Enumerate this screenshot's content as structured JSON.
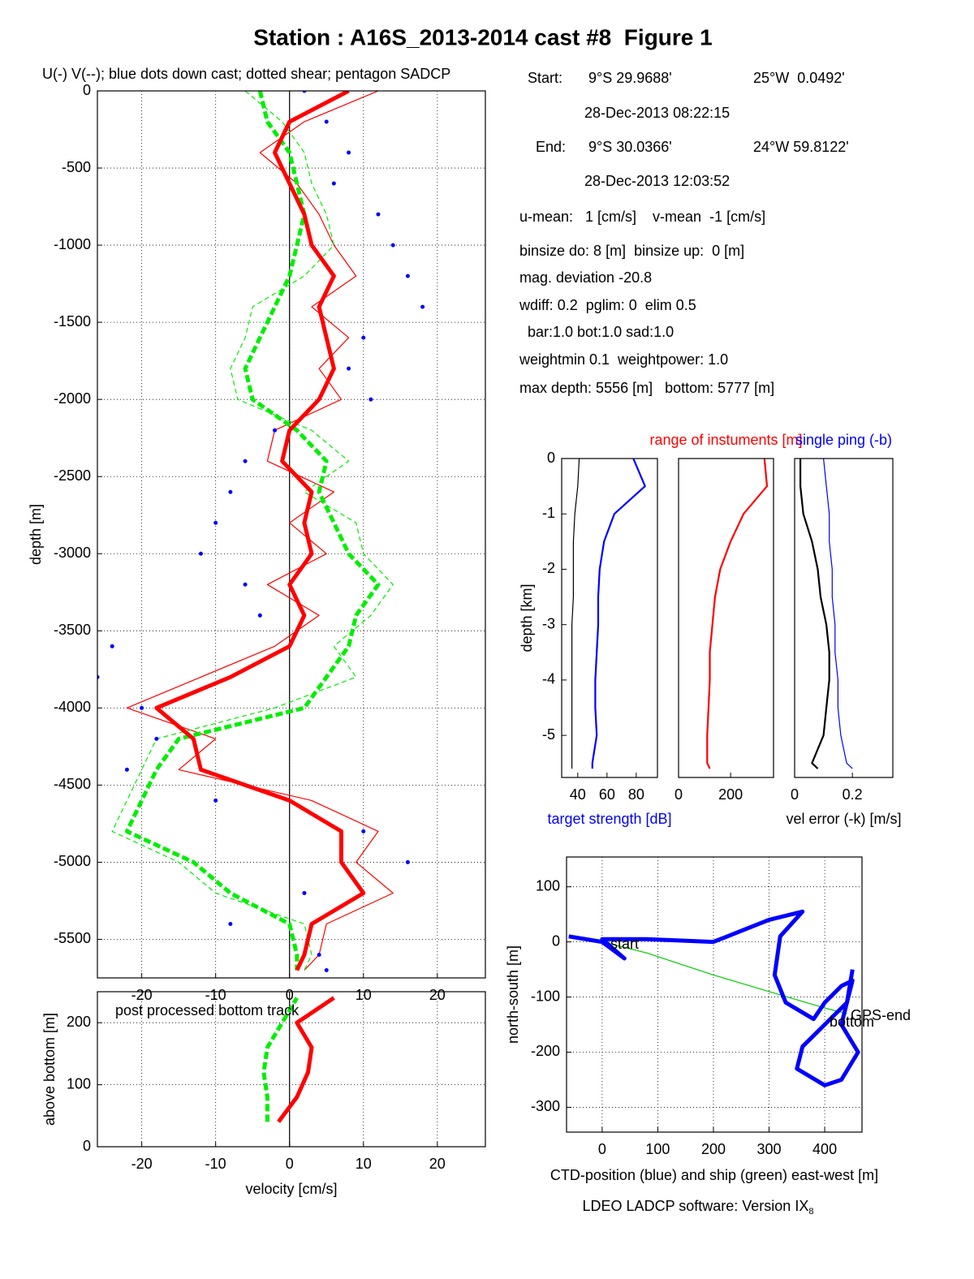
{
  "title": "Station : A16S_2013-2014 cast #8  Figure 1",
  "info": [
    [
      "Start:",
      "9°S 29.9688'",
      "25°W  0.0492'"
    ],
    [
      "28-Dec-2013 08:22:15"
    ],
    [
      "End:",
      "9°S 30.0366'",
      "24°W 59.8122'"
    ],
    [
      "28-Dec-2013 12:03:52"
    ],
    [
      "u-mean:   1 [cm/s]    v-mean  -1 [cm/s]"
    ],
    [
      "binsize do: 8 [m]  binsize up:  0 [m]"
    ],
    [
      "mag. deviation -20.8"
    ],
    [
      "wdiff: 0.2  pglim: 0  elim 0.5"
    ],
    [
      "  bar:1.0 bot:1.0 sad:1.0"
    ],
    [
      "weightmin 0.1  weightpower: 1.0"
    ],
    [
      "max depth: 5556 [m]   bottom: 5777 [m]"
    ]
  ],
  "footer": {
    "text": "LDEO LADCP software: Version IX",
    "subscript": "8"
  },
  "chart_data": [
    {
      "type": "line",
      "title": "U(-) V(--); blue dots down cast; dotted shear; pentagon SADCP",
      "xlabel": "velocity [cm/s]",
      "ylabel": "depth [m]",
      "grid": true,
      "zero_line": true,
      "xlim": [
        -26,
        26.5
      ],
      "ylim": [
        -5750,
        0
      ],
      "xticks": [
        -20,
        -10,
        0,
        10,
        20
      ],
      "yticks": [
        0,
        -500,
        -1000,
        -1500,
        -2000,
        -2500,
        -3000,
        -3500,
        -4000,
        -4500,
        -5000,
        -5500
      ],
      "y": [
        0,
        -200,
        -400,
        -600,
        -800,
        -1000,
        -1200,
        -1400,
        -1600,
        -1800,
        -2000,
        -2200,
        -2400,
        -2600,
        -2800,
        -3000,
        -3200,
        -3400,
        -3600,
        -3800,
        -4000,
        -4200,
        -4400,
        -4600,
        -4800,
        -5000,
        -5200,
        -5400,
        -5600,
        -5700
      ],
      "series": [
        {
          "color": "#ff0000",
          "style": "thin",
          "values": [
            12,
            2,
            -4,
            1,
            4,
            6,
            9,
            3,
            8,
            4,
            7,
            -2,
            -3,
            6,
            0,
            5,
            -3,
            4,
            -2,
            -12,
            -22,
            -10,
            -15,
            3,
            12,
            9,
            14,
            5,
            4,
            2
          ]
        },
        {
          "color": "#00ee00",
          "style": "thin-dashed",
          "values": [
            -6,
            -1,
            2,
            3,
            5,
            6,
            2,
            -5,
            -6,
            -8,
            -7,
            3,
            8,
            2,
            9,
            10,
            14,
            11,
            6,
            9,
            -2,
            -18,
            -20,
            -22,
            -24,
            -15,
            -10,
            2,
            3,
            2
          ]
        },
        {
          "color": "#0000ff",
          "style": "dots",
          "values": [
            2,
            5,
            8,
            6,
            12,
            14,
            16,
            18,
            10,
            8,
            11,
            -2,
            -6,
            -8,
            -10,
            -12,
            -6,
            -4,
            -24,
            -26,
            -20,
            -18,
            -22,
            -10,
            10,
            16,
            2,
            -8,
            4,
            5
          ]
        },
        {
          "color": "#00ee00",
          "style": "thick-dashed",
          "values": [
            -4,
            -3,
            0,
            1,
            2,
            1,
            0,
            -2,
            -4,
            -6,
            -5,
            1,
            5,
            4,
            6,
            8,
            12,
            9,
            8,
            5,
            2,
            -15,
            -18,
            -20,
            -22,
            -13,
            -8,
            0,
            1,
            1
          ]
        },
        {
          "color": "#ff0000",
          "style": "thick",
          "values": [
            8,
            0,
            -2,
            0,
            2,
            3,
            6,
            4,
            5,
            6,
            4,
            0,
            -1,
            3,
            2,
            3,
            0,
            2,
            0,
            -8,
            -18,
            -13,
            -12,
            0,
            7,
            7,
            10,
            3,
            2,
            1
          ]
        }
      ]
    },
    {
      "type": "line",
      "annotation": "post processed bottom track",
      "ylabel": "above bottom [m]",
      "grid": true,
      "zero_line": true,
      "xlim": [
        -26,
        26.5
      ],
      "ylim": [
        0,
        250
      ],
      "xticks": [
        -20,
        -10,
        0,
        10,
        20
      ],
      "yticks": [
        0,
        100,
        200
      ],
      "y": [
        40,
        80,
        120,
        160,
        200,
        240
      ],
      "series": [
        {
          "color": "#00ee00",
          "style": "thick-dashed",
          "values": [
            -3,
            -3,
            -3.5,
            -3,
            -1,
            1
          ]
        },
        {
          "color": "#ff0000",
          "style": "thick",
          "values": [
            -1.5,
            1,
            2.5,
            3,
            1,
            6
          ]
        }
      ]
    },
    {
      "type": "line",
      "xlabel": "target strength [dB]",
      "xlabel_color": "#0000ff",
      "ylabel": "depth [km]",
      "grid": false,
      "xlim": [
        29,
        94.5
      ],
      "ylim": [
        -5.76,
        0
      ],
      "xticks": [
        40,
        60,
        80
      ],
      "yticks": [
        0,
        -1,
        -2,
        -3,
        -4,
        -5
      ],
      "y": [
        0,
        -0.5,
        -1,
        -1.5,
        -2,
        -2.5,
        -3,
        -3.5,
        -4,
        -4.5,
        -5,
        -5.5,
        -5.6
      ],
      "series": [
        {
          "color": "#000000",
          "style": "thin",
          "values": [
            41,
            40,
            38,
            37,
            37,
            37,
            36,
            36,
            36,
            36,
            36,
            36,
            36
          ]
        },
        {
          "color": "#0000ff",
          "style": "mid",
          "values": [
            78,
            86,
            65,
            58,
            55,
            54,
            54,
            53,
            52,
            52,
            53,
            50,
            50
          ]
        }
      ]
    },
    {
      "type": "line",
      "title": "range of instuments [m]",
      "title_color": "#ff0000",
      "grid": false,
      "xlim": [
        0,
        365
      ],
      "ylim": [
        -5.76,
        0
      ],
      "xticks": [
        0,
        200
      ],
      "y": [
        0,
        -0.5,
        -1,
        -1.5,
        -2,
        -2.5,
        -3,
        -3.5,
        -4,
        -4.5,
        -5,
        -5.5,
        -5.6
      ],
      "series": [
        {
          "color": "#ff0000",
          "style": "mid",
          "values": [
            330,
            340,
            250,
            200,
            160,
            140,
            130,
            120,
            120,
            115,
            110,
            110,
            120
          ]
        }
      ]
    },
    {
      "type": "line",
      "title": "single ping (-b)",
      "title_color": "#0000ff",
      "xlabel": "vel error (-k) [m/s]",
      "grid": false,
      "xlim": [
        0,
        0.34
      ],
      "ylim": [
        -5.76,
        0
      ],
      "xticks": [
        0,
        0.2
      ],
      "y": [
        0,
        -0.5,
        -1,
        -1.5,
        -2,
        -2.5,
        -3,
        -3.5,
        -4,
        -4.5,
        -5,
        -5.5,
        -5.6
      ],
      "series": [
        {
          "color": "#0000ff",
          "style": "thin",
          "values": [
            0.1,
            0.11,
            0.12,
            0.12,
            0.13,
            0.13,
            0.14,
            0.14,
            0.15,
            0.15,
            0.16,
            0.18,
            0.2
          ]
        },
        {
          "color": "#000000",
          "style": "mid",
          "values": [
            0.02,
            0.02,
            0.03,
            0.06,
            0.08,
            0.09,
            0.11,
            0.12,
            0.12,
            0.11,
            0.1,
            0.06,
            0.08
          ]
        }
      ]
    },
    {
      "type": "line",
      "xlabel": "CTD-position (blue) and ship (green) east-west [m]",
      "ylabel": "north-south [m]",
      "grid": true,
      "xlim": [
        -64,
        467
      ],
      "ylim": [
        -345,
        154
      ],
      "xticks": [
        0,
        100,
        200,
        300,
        400
      ],
      "yticks": [
        -300,
        -200,
        -100,
        0,
        100
      ],
      "labels": [
        "start",
        "GPS-end",
        "bottom"
      ],
      "series": [
        {
          "color": "#00cc00",
          "style": "thin",
          "x": [
            0,
            80,
            200,
            300,
            400,
            440
          ],
          "y": [
            0,
            -20,
            -60,
            -90,
            -120,
            -130
          ]
        },
        {
          "color": "#0000ff",
          "style": "thick",
          "x": [
            -60,
            0,
            40,
            0,
            80,
            200,
            300,
            360,
            320,
            310,
            330,
            380,
            400,
            430,
            450,
            430,
            460,
            430,
            400,
            350,
            360,
            400,
            420,
            440,
            450
          ],
          "y": [
            10,
            0,
            -30,
            5,
            5,
            0,
            40,
            55,
            10,
            -60,
            -110,
            -140,
            -110,
            -80,
            -70,
            -150,
            -200,
            -250,
            -260,
            -230,
            -190,
            -150,
            -130,
            -110,
            -50
          ]
        }
      ]
    }
  ]
}
